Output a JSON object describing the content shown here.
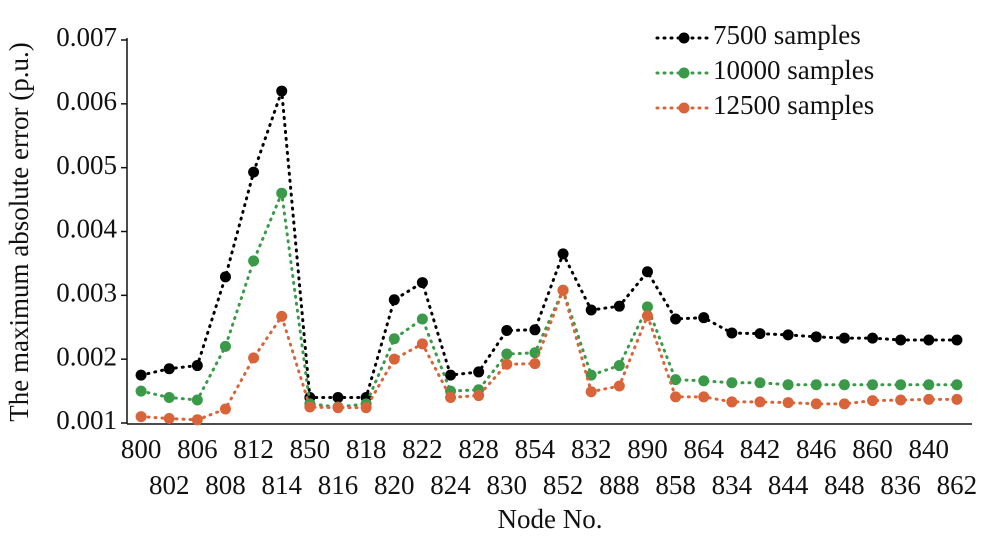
{
  "chart_data": {
    "type": "line",
    "x_label": "Node No.",
    "y_label": "The maximum absolute error (p.u.)",
    "categories": [
      "800",
      "802",
      "806",
      "808",
      "812",
      "814",
      "850",
      "816",
      "818",
      "820",
      "822",
      "824",
      "828",
      "830",
      "854",
      "852",
      "832",
      "888",
      "890",
      "858",
      "864",
      "834",
      "842",
      "844",
      "846",
      "848",
      "860",
      "836",
      "840",
      "862"
    ],
    "series": [
      {
        "name": "7500 samples",
        "color": "#000000",
        "values": [
          0.00175,
          0.00185,
          0.0019,
          0.00329,
          0.00493,
          0.0062,
          0.0014,
          0.0014,
          0.0014,
          0.00293,
          0.0032,
          0.00175,
          0.0018,
          0.00245,
          0.00246,
          0.00365,
          0.00277,
          0.00283,
          0.00337,
          0.00263,
          0.00265,
          0.00241,
          0.0024,
          0.00238,
          0.00235,
          0.00233,
          0.00233,
          0.0023,
          0.0023,
          0.0023
        ]
      },
      {
        "name": "10000 samples",
        "color": "#3a9a4a",
        "values": [
          0.0015,
          0.0014,
          0.00136,
          0.0022,
          0.00354,
          0.0046,
          0.0013,
          0.00125,
          0.0013,
          0.00232,
          0.00263,
          0.0015,
          0.00152,
          0.00208,
          0.0021,
          0.00308,
          0.00175,
          0.0019,
          0.00282,
          0.00168,
          0.00166,
          0.00163,
          0.00163,
          0.0016,
          0.0016,
          0.0016,
          0.0016,
          0.0016,
          0.0016,
          0.0016
        ]
      },
      {
        "name": "12500 samples",
        "color": "#d9643a",
        "values": [
          0.0011,
          0.00107,
          0.00105,
          0.00122,
          0.00202,
          0.00267,
          0.00125,
          0.00124,
          0.00124,
          0.002,
          0.00224,
          0.0014,
          0.00143,
          0.00192,
          0.00193,
          0.00308,
          0.00149,
          0.00158,
          0.00268,
          0.00141,
          0.00141,
          0.00133,
          0.00133,
          0.00132,
          0.0013,
          0.0013,
          0.00135,
          0.00136,
          0.00137,
          0.00137
        ]
      }
    ],
    "ylim": [
      0.001,
      0.007
    ],
    "yticks": [
      0.001,
      0.002,
      0.003,
      0.004,
      0.005,
      0.006,
      0.007
    ],
    "legend": "upper right",
    "grid": false
  }
}
